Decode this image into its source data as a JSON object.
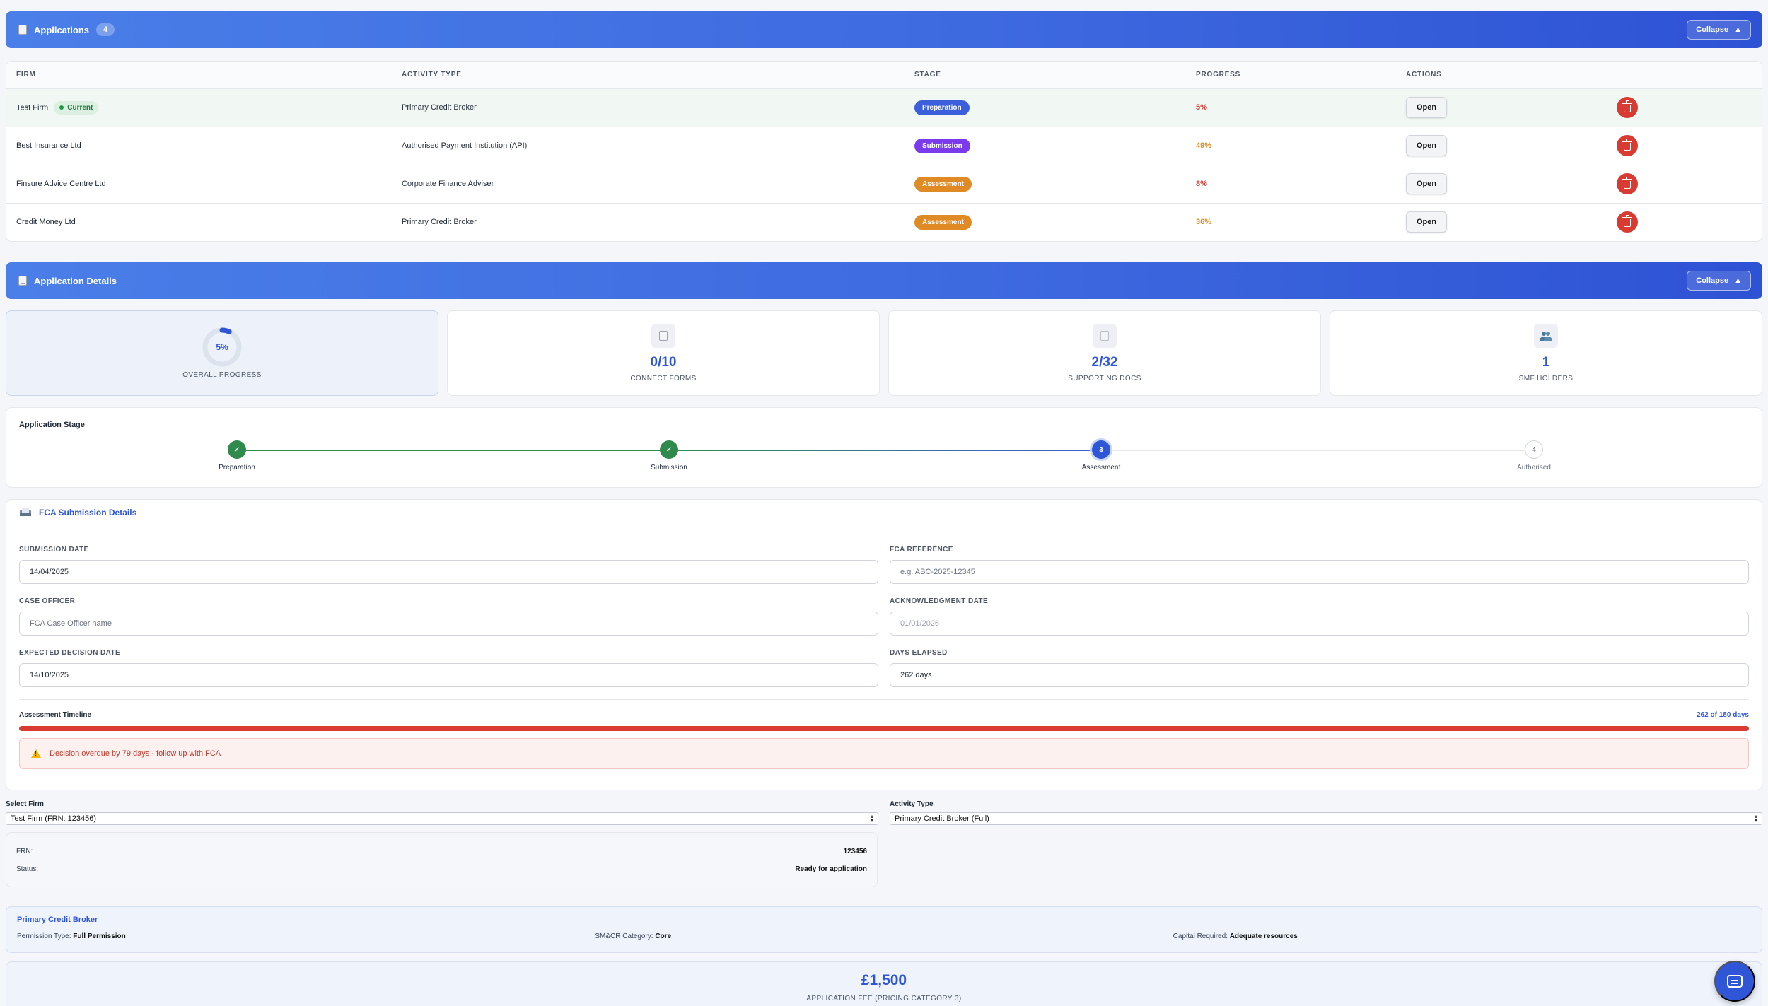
{
  "applications": {
    "title": "Applications",
    "count": "4",
    "collapse_label": "Collapse",
    "columns": [
      "FIRM",
      "ACTIVITY TYPE",
      "STAGE",
      "PROGRESS",
      "ACTIONS"
    ],
    "current_badge": "Current",
    "open_label": "Open",
    "rows": [
      {
        "firm": "Test Firm",
        "activity": "Primary Credit Broker",
        "stage": "Preparation",
        "progress": "5%"
      },
      {
        "firm": "Best Insurance Ltd",
        "activity": "Authorised Payment Institution (API)",
        "stage": "Submission",
        "progress": "49%"
      },
      {
        "firm": "Finsure Advice Centre Ltd",
        "activity": "Corporate Finance Adviser",
        "stage": "Assessment",
        "progress": "8%"
      },
      {
        "firm": "Credit Money Ltd",
        "activity": "Primary Credit Broker",
        "stage": "Assessment",
        "progress": "36%"
      }
    ]
  },
  "details": {
    "title": "Application Details",
    "collapse_label": "Collapse"
  },
  "stats": {
    "overall_progress": "5%",
    "overall_progress_value": 0.05,
    "overall_label": "OVERALL PROGRESS",
    "connect_forms": "0/10",
    "connect_label": "CONNECT FORMS",
    "supporting_docs": "2/32",
    "docs_label": "SUPPORTING DOCS",
    "smf_holders": "1",
    "smf_label": "SMF HOLDERS"
  },
  "stage_tracker": {
    "title": "Application Stage",
    "steps": [
      {
        "label": "Preparation",
        "marker": "✓"
      },
      {
        "label": "Submission",
        "marker": "✓"
      },
      {
        "label": "Assessment",
        "marker": "3"
      },
      {
        "label": "Authorised",
        "marker": "4"
      }
    ]
  },
  "fca": {
    "title": "FCA Submission Details",
    "submission_date_label": "SUBMISSION DATE",
    "submission_date": "14/04/2025",
    "fca_reference_label": "FCA REFERENCE",
    "fca_reference_placeholder": "e.g. ABC-2025-12345",
    "case_officer_label": "CASE OFFICER",
    "case_officer_placeholder": "FCA Case Officer name",
    "ack_date_label": "ACKNOWLEDGMENT DATE",
    "ack_date_placeholder": "01/01/2026",
    "expected_decision_label": "EXPECTED DECISION DATE",
    "expected_decision": "14/10/2025",
    "days_elapsed_label": "DAYS ELAPSED",
    "days_elapsed": "262 days",
    "timeline_label": "Assessment Timeline",
    "timeline_value": "262 of 180 days",
    "alert": "Decision overdue by 79 days - follow up with FCA"
  },
  "selection": {
    "firm_label": "Select Firm",
    "firm_value": "Test Firm (FRN: 123456)",
    "activity_label": "Activity Type",
    "activity_value": "Primary Credit Broker (Full)",
    "frn_label": "FRN:",
    "frn_value": "123456",
    "status_label": "Status:",
    "status_value": "Ready for application"
  },
  "permission": {
    "title": "Primary Credit Broker",
    "type_label": "Permission Type:",
    "type_value": "Full Permission",
    "smcr_label": "SM&CR Category:",
    "smcr_value": "Core",
    "capital_label": "Capital Required:",
    "capital_value": "Adequate resources"
  },
  "fee": {
    "amount": "£1,500",
    "label": "APPLICATION FEE (PRICING CATEGORY 3)"
  },
  "colors": {
    "accent": "#2e56d6",
    "preparation": "#3b5fdc",
    "submission": "#7c3aed",
    "assessment": "#e08a26",
    "danger": "#d93a32",
    "success": "#2f8a4c",
    "progress_low": "#d93a32",
    "progress_mid": "#e08a26"
  }
}
